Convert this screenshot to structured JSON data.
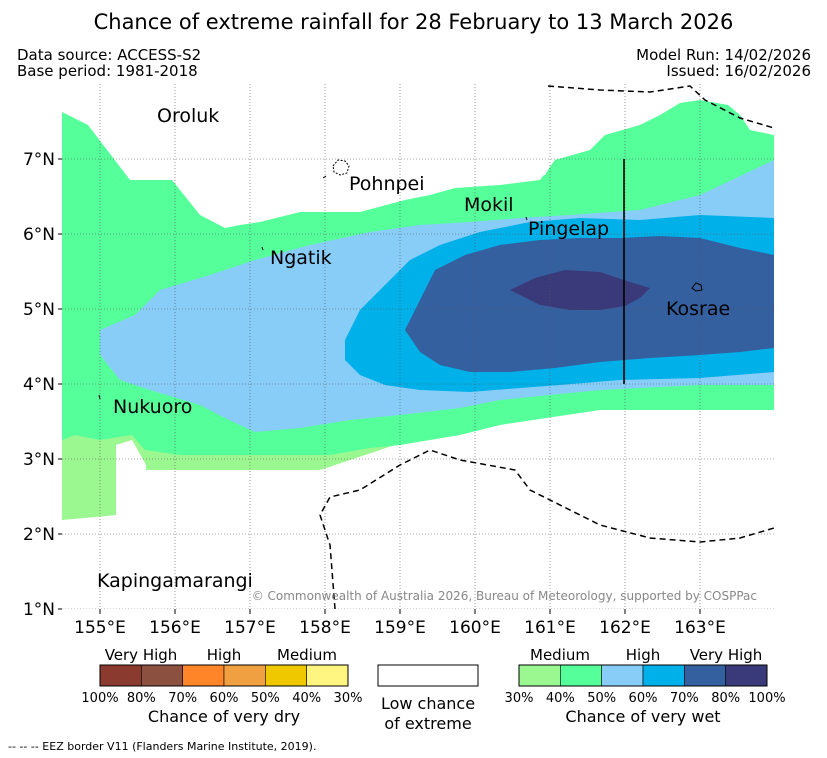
{
  "title": "Chance of extreme rainfall for 28 February to 13 March 2026",
  "meta": {
    "data_source": "Data source: ACCESS-S2",
    "base_period": "Base period: 1981-2018",
    "model_run": "Model Run: 14/02/2026",
    "issued": "Issued: 16/02/2026"
  },
  "axes": {
    "lon_labels": [
      "155°E",
      "156°E",
      "157°E",
      "158°E",
      "159°E",
      "160°E",
      "161°E",
      "162°E",
      "163°E"
    ],
    "lat_labels": [
      "7°N",
      "6°N",
      "5°N",
      "4°N",
      "3°N",
      "2°N",
      "1°N"
    ]
  },
  "places": {
    "oroluk": "Oroluk",
    "pohnpei": "Pohnpei",
    "mokil": "Mokil",
    "pingelap": "Pingelap",
    "ngatik": "Ngatik",
    "kosrae": "Kosrae",
    "nukuoro": "Nukuoro",
    "kapingamarangi": "Kapingamarangi"
  },
  "copyright": "© Commonwealth of Australia 2026, Bureau of Meteorology, supported by COSPPac",
  "legend_dry": {
    "headers": {
      "very_high": "Very High",
      "high": "High",
      "medium": "Medium"
    },
    "colors": [
      "#8b3a2f",
      "#8c5040",
      "#ff8528",
      "#f0a040",
      "#f0c800",
      "#fff580"
    ],
    "ticks": [
      "100%",
      "80%",
      "70%",
      "60%",
      "50%",
      "40%",
      "30%"
    ],
    "title": "Chance of very dry"
  },
  "legend_low": {
    "line1": "Low chance",
    "line2": "of extreme"
  },
  "legend_wet": {
    "headers": {
      "medium": "Medium",
      "high": "High",
      "very_high": "Very High"
    },
    "colors": [
      "#9bf78f",
      "#55ff99",
      "#88ccf8",
      "#00b0e8",
      "#3560a0",
      "#3a3a7a"
    ],
    "ticks": [
      "30%",
      "40%",
      "50%",
      "60%",
      "70%",
      "80%",
      "100%"
    ],
    "title": "Chance of very wet"
  },
  "eez_note": "--  --  -- EEZ border V11 (Flanders Marine Institute, 2019)."
}
